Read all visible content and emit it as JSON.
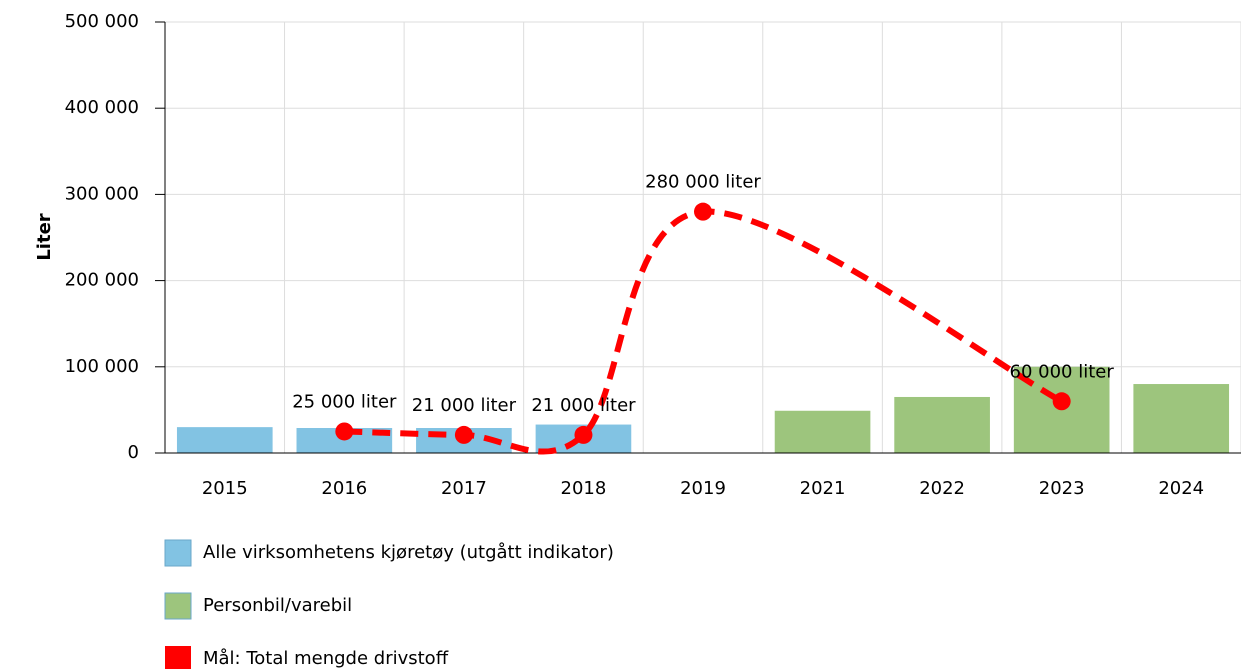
{
  "chart_data": {
    "type": "bar",
    "y_label": "Liter",
    "categories": [
      "2015",
      "2016",
      "2017",
      "2018",
      "2019",
      "2021",
      "2022",
      "2023",
      "2024"
    ],
    "series": [
      {
        "name": "Alle virksomhetens kjøretøy (utgått indikator)",
        "type": "bar",
        "color": "#82c3e3",
        "values": [
          30000,
          29000,
          29000,
          33000,
          null,
          null,
          null,
          null,
          null
        ]
      },
      {
        "name": "Personbil/varebil",
        "type": "bar",
        "color": "#9dc57d",
        "values": [
          null,
          null,
          null,
          null,
          null,
          49000,
          65000,
          100000,
          80000
        ]
      },
      {
        "name": "Mål: Total mengde drivstoff",
        "type": "line",
        "color": "#ff0000",
        "dashed": true,
        "smooth": true,
        "connect_nulls": true,
        "values": [
          null,
          25000,
          21000,
          21000,
          280000,
          null,
          null,
          60000,
          null
        ],
        "value_labels": [
          null,
          "25 000 liter",
          "21 000 liter",
          "21 000 liter",
          "280 000 liter",
          null,
          null,
          "60 000 liter",
          null
        ]
      }
    ],
    "ylim": [
      0,
      500000
    ],
    "yticks": [
      0,
      {
        "value": 100000,
        "label": "100 000"
      },
      {
        "value": 200000,
        "label": "200 000"
      },
      {
        "value": 300000,
        "label": "300 000"
      },
      {
        "value": 400000,
        "label": "400 000"
      },
      {
        "value": 500000,
        "label": "500 000"
      }
    ],
    "grid": true,
    "legend": "bottom"
  }
}
